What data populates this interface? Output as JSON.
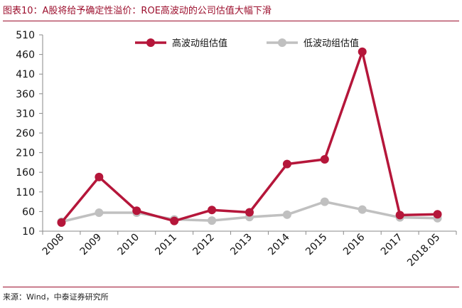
{
  "figure": {
    "title": "图表10：A股将给予确定性溢价：ROE高波动的公司估值大幅下滑",
    "source": "来源：Wind，中泰证券研究所"
  },
  "chart_data": {
    "type": "line",
    "categories": [
      "2008",
      "2009",
      "2010",
      "2011",
      "2012",
      "2013",
      "2014",
      "2015",
      "2016",
      "2017",
      "2018.05"
    ],
    "series": [
      {
        "name": "高波动组估值",
        "color": "#b5163a",
        "marker": "filled-circle",
        "values": [
          32,
          148,
          62,
          36,
          64,
          58,
          181,
          193,
          467,
          51,
          53
        ]
      },
      {
        "name": "低波动组估值",
        "color": "#c0c0c0",
        "marker": "filled-circle",
        "values": [
          34,
          57,
          57,
          40,
          37,
          46,
          52,
          85,
          65,
          45,
          43
        ]
      }
    ],
    "yticks": [
      10,
      60,
      110,
      160,
      210,
      260,
      310,
      360,
      410,
      460,
      510
    ],
    "ylim": [
      10,
      510
    ],
    "grid": false,
    "legend_position": "top-center",
    "xlabel": "",
    "ylabel": ""
  }
}
